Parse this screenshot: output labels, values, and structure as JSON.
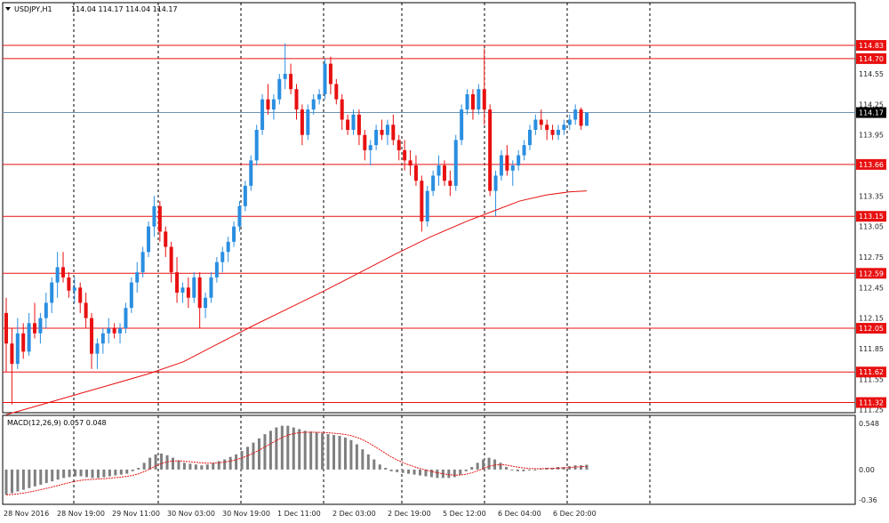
{
  "header": {
    "symbol": "USDJPY,H1",
    "ohlc": "114.04 114.17 114.04 114.17"
  },
  "macd": {
    "label": "MACD(12,26,9) 0.057 0.048",
    "ticks": [
      "0.548",
      "0.00",
      "-0.36"
    ]
  },
  "colors": {
    "bull": "#2a8ee0",
    "bear": "#e81010",
    "level": "#e81010",
    "ma": "#e81010",
    "current": "#6f93b8",
    "macd_hist": "#7f7f7f",
    "macd_signal": "#e81010",
    "level_label_bg": "#e81010",
    "current_label_bg": "#000000"
  },
  "chart_data": [
    {
      "type": "candlestick",
      "symbol": "USDJPY",
      "timeframe": "H1",
      "y_axis_ticks": [
        "114.55",
        "114.25",
        "113.95",
        "113.35",
        "113.05",
        "112.75",
        "112.45",
        "112.15",
        "111.85",
        "111.55",
        "111.25"
      ],
      "x_axis_labels": [
        "28 Nov 2016",
        "28 Nov 19:00",
        "29 Nov 11:00",
        "30 Nov 03:00",
        "30 Nov 19:00",
        "1 Dec 11:00",
        "2 Dec 03:00",
        "2 Dec 19:00",
        "5 Dec 12:00",
        "6 Dec 04:00",
        "6 Dec 20:00"
      ],
      "ylim": [
        111.22,
        115.25
      ],
      "horizontal_levels": [
        "114.83",
        "114.70",
        "113.66",
        "113.15",
        "112.59",
        "112.05",
        "111.62",
        "111.32"
      ],
      "current_price": "114.17",
      "moving_average_points": [
        [
          0,
          111.2
        ],
        [
          20,
          111.3
        ],
        [
          40,
          111.4
        ],
        [
          60,
          111.5
        ],
        [
          80,
          111.6
        ],
        [
          100,
          111.72
        ],
        [
          120,
          111.9
        ],
        [
          140,
          112.08
        ],
        [
          160,
          112.25
        ],
        [
          180,
          112.42
        ],
        [
          200,
          112.6
        ],
        [
          220,
          112.78
        ],
        [
          240,
          112.95
        ],
        [
          260,
          113.1
        ],
        [
          275,
          113.2
        ],
        [
          290,
          113.3
        ],
        [
          305,
          113.36
        ],
        [
          318,
          113.39
        ],
        [
          328,
          113.4
        ]
      ],
      "candles_ohlc": [
        [
          112.2,
          112.35,
          111.62,
          111.9
        ],
        [
          111.9,
          112.05,
          111.3,
          111.7
        ],
        [
          111.7,
          112.15,
          111.65,
          112.0
        ],
        [
          112.0,
          112.1,
          111.75,
          111.82
        ],
        [
          111.82,
          112.2,
          111.78,
          112.1
        ],
        [
          112.1,
          112.3,
          111.95,
          112.0
        ],
        [
          112.0,
          112.2,
          111.9,
          112.15
        ],
        [
          112.15,
          112.4,
          112.05,
          112.3
        ],
        [
          112.3,
          112.55,
          112.2,
          112.5
        ],
        [
          112.5,
          112.8,
          112.35,
          112.65
        ],
        [
          112.65,
          112.8,
          112.5,
          112.55
        ],
        [
          112.55,
          112.6,
          112.35,
          112.42
        ],
        [
          112.42,
          112.55,
          112.3,
          112.45
        ],
        [
          112.45,
          112.5,
          112.2,
          112.3
        ],
        [
          112.3,
          112.4,
          112.05,
          112.15
        ],
        [
          112.15,
          112.2,
          111.65,
          111.8
        ],
        [
          111.8,
          111.95,
          111.65,
          111.9
        ],
        [
          111.9,
          112.05,
          111.8,
          112.0
        ],
        [
          112.0,
          112.15,
          111.9,
          112.05
        ],
        [
          112.05,
          112.1,
          111.95,
          112.0
        ],
        [
          112.0,
          112.1,
          111.9,
          112.05
        ],
        [
          112.05,
          112.3,
          112.0,
          112.25
        ],
        [
          112.25,
          112.55,
          112.2,
          112.5
        ],
        [
          112.5,
          112.7,
          112.4,
          112.6
        ],
        [
          112.6,
          112.85,
          112.55,
          112.8
        ],
        [
          112.8,
          113.1,
          112.75,
          113.05
        ],
        [
          113.05,
          113.35,
          112.95,
          113.25
        ],
        [
          113.25,
          113.3,
          112.9,
          113.0
        ],
        [
          113.0,
          113.05,
          112.75,
          112.85
        ],
        [
          112.85,
          112.9,
          112.5,
          112.6
        ],
        [
          112.6,
          112.75,
          112.3,
          112.4
        ],
        [
          112.4,
          112.5,
          112.3,
          112.45
        ],
        [
          112.45,
          112.55,
          112.25,
          112.35
        ],
        [
          112.35,
          112.6,
          112.3,
          112.55
        ],
        [
          112.55,
          112.6,
          112.05,
          112.25
        ],
        [
          112.25,
          112.4,
          112.15,
          112.35
        ],
        [
          112.35,
          112.6,
          112.3,
          112.55
        ],
        [
          112.55,
          112.75,
          112.5,
          112.7
        ],
        [
          112.7,
          112.85,
          112.6,
          112.8
        ],
        [
          112.8,
          112.95,
          112.7,
          112.9
        ],
        [
          112.9,
          113.1,
          112.85,
          113.05
        ],
        [
          113.05,
          113.3,
          113.0,
          113.25
        ],
        [
          113.25,
          113.5,
          113.2,
          113.45
        ],
        [
          113.45,
          113.75,
          113.4,
          113.7
        ],
        [
          113.7,
          114.05,
          113.65,
          114.0
        ],
        [
          114.0,
          114.35,
          113.95,
          114.3
        ],
        [
          114.3,
          114.45,
          114.15,
          114.2
        ],
        [
          114.2,
          114.35,
          114.1,
          114.3
        ],
        [
          114.3,
          114.55,
          114.25,
          114.5
        ],
        [
          114.5,
          114.85,
          114.4,
          114.55
        ],
        [
          114.55,
          114.65,
          114.35,
          114.4
        ],
        [
          114.4,
          114.45,
          114.1,
          114.2
        ],
        [
          114.2,
          114.25,
          113.85,
          113.95
        ],
        [
          113.95,
          114.25,
          113.9,
          114.2
        ],
        [
          114.2,
          114.35,
          114.15,
          114.3
        ],
        [
          114.3,
          114.4,
          114.25,
          114.35
        ],
        [
          114.35,
          114.7,
          114.3,
          114.65
        ],
        [
          114.65,
          114.72,
          114.35,
          114.45
        ],
        [
          114.45,
          114.5,
          114.25,
          114.3
        ],
        [
          114.3,
          114.35,
          114.0,
          114.1
        ],
        [
          114.1,
          114.15,
          113.95,
          114.0
        ],
        [
          114.0,
          114.2,
          113.95,
          114.15
        ],
        [
          114.15,
          114.2,
          113.85,
          113.95
        ],
        [
          113.95,
          114.0,
          113.7,
          113.8
        ],
        [
          113.8,
          113.9,
          113.65,
          113.85
        ],
        [
          113.85,
          114.05,
          113.8,
          114.0
        ],
        [
          114.0,
          114.1,
          113.9,
          113.95
        ],
        [
          113.95,
          114.1,
          113.85,
          114.05
        ],
        [
          114.05,
          114.15,
          113.85,
          113.9
        ],
        [
          113.9,
          113.95,
          113.7,
          113.8
        ],
        [
          113.8,
          113.9,
          113.6,
          113.7
        ],
        [
          113.7,
          113.8,
          113.55,
          113.65
        ],
        [
          113.65,
          113.75,
          113.45,
          113.5
        ],
        [
          113.5,
          113.55,
          113.0,
          113.1
        ],
        [
          113.1,
          113.45,
          113.05,
          113.4
        ],
        [
          113.4,
          113.6,
          113.35,
          113.55
        ],
        [
          113.55,
          113.75,
          113.45,
          113.65
        ],
        [
          113.65,
          113.7,
          113.45,
          113.5
        ],
        [
          113.5,
          113.6,
          113.35,
          113.45
        ],
        [
          113.45,
          113.95,
          113.4,
          113.9
        ],
        [
          113.9,
          114.25,
          113.85,
          114.2
        ],
        [
          114.2,
          114.4,
          114.15,
          114.35
        ],
        [
          114.35,
          114.4,
          114.1,
          114.2
        ],
        [
          114.2,
          114.45,
          114.15,
          114.4
        ],
        [
          114.4,
          114.8,
          114.05,
          114.2
        ],
        [
          114.2,
          114.25,
          113.35,
          113.4
        ],
        [
          113.4,
          113.6,
          113.15,
          113.55
        ],
        [
          113.55,
          113.8,
          113.5,
          113.75
        ],
        [
          113.75,
          113.85,
          113.55,
          113.6
        ],
        [
          113.6,
          113.7,
          113.45,
          113.65
        ],
        [
          113.65,
          113.8,
          113.6,
          113.75
        ],
        [
          113.75,
          113.9,
          113.7,
          113.85
        ],
        [
          113.85,
          114.05,
          113.8,
          114.0
        ],
        [
          114.0,
          114.15,
          113.95,
          114.1
        ],
        [
          114.1,
          114.2,
          114.0,
          114.05
        ],
        [
          114.05,
          114.1,
          113.9,
          114.0
        ],
        [
          114.0,
          114.05,
          113.9,
          113.95
        ],
        [
          113.95,
          114.05,
          113.9,
          114.0
        ],
        [
          114.0,
          114.1,
          113.95,
          114.05
        ],
        [
          114.05,
          114.15,
          114.0,
          114.1
        ],
        [
          114.1,
          114.25,
          114.05,
          114.2
        ],
        [
          114.2,
          114.22,
          114.0,
          114.04
        ],
        [
          114.04,
          114.17,
          114.04,
          114.17
        ]
      ]
    },
    {
      "type": "bar",
      "name": "MACD(12,26,9)",
      "ylim": [
        -0.36,
        0.548
      ],
      "histogram_values": [
        -0.3,
        -0.28,
        -0.26,
        -0.24,
        -0.22,
        -0.2,
        -0.18,
        -0.16,
        -0.14,
        -0.12,
        -0.1,
        -0.09,
        -0.08,
        -0.08,
        -0.09,
        -0.1,
        -0.1,
        -0.09,
        -0.08,
        -0.07,
        -0.06,
        -0.05,
        -0.02,
        0.02,
        0.08,
        0.14,
        0.18,
        0.19,
        0.17,
        0.14,
        0.11,
        0.08,
        0.07,
        0.06,
        0.05,
        0.06,
        0.08,
        0.1,
        0.12,
        0.15,
        0.18,
        0.22,
        0.27,
        0.32,
        0.37,
        0.42,
        0.46,
        0.5,
        0.52,
        0.52,
        0.5,
        0.48,
        0.46,
        0.45,
        0.44,
        0.43,
        0.42,
        0.41,
        0.4,
        0.38,
        0.35,
        0.3,
        0.24,
        0.18,
        0.12,
        0.06,
        0.02,
        -0.02,
        -0.03,
        -0.04,
        -0.05,
        -0.06,
        -0.07,
        -0.08,
        -0.09,
        -0.1,
        -0.1,
        -0.1,
        -0.09,
        -0.06,
        -0.02,
        0.03,
        0.08,
        0.12,
        0.14,
        0.12,
        0.08,
        0.03,
        -0.01,
        -0.02,
        -0.02,
        -0.01,
        0.0,
        0.01,
        0.02,
        0.02,
        0.03,
        0.03,
        0.04,
        0.05,
        0.05,
        0.057
      ]
    }
  ]
}
